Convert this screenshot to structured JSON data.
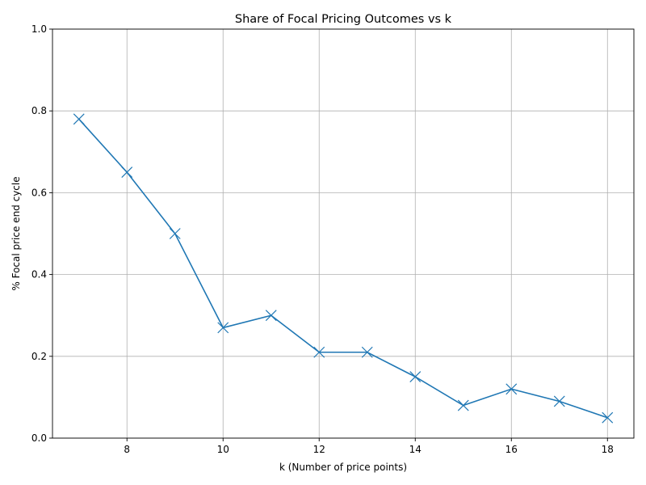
{
  "chart_data": {
    "type": "line",
    "title": "Share of Focal Pricing Outcomes vs k",
    "xlabel": "k (Number of price points)",
    "ylabel": "% Focal price end cycle",
    "xlim": [
      6.45,
      18.55
    ],
    "ylim": [
      0,
      1.0
    ],
    "xticks": [
      8,
      10,
      12,
      14,
      16,
      18
    ],
    "yticks": [
      0.0,
      0.2,
      0.4,
      0.6,
      0.8,
      1.0
    ],
    "xtick_labels": [
      "8",
      "10",
      "12",
      "14",
      "16",
      "18"
    ],
    "ytick_labels": [
      "0.0",
      "0.2",
      "0.4",
      "0.6",
      "0.8",
      "1.0"
    ],
    "grid": true,
    "marker": "x",
    "color": "#1f77b4",
    "series": [
      {
        "x": [
          7,
          8,
          9,
          10,
          11,
          12,
          13,
          14,
          15,
          16,
          17,
          18
        ],
        "values": [
          0.78,
          0.65,
          0.5,
          0.27,
          0.3,
          0.21,
          0.21,
          0.15,
          0.08,
          0.12,
          0.09,
          0.05
        ]
      }
    ]
  }
}
